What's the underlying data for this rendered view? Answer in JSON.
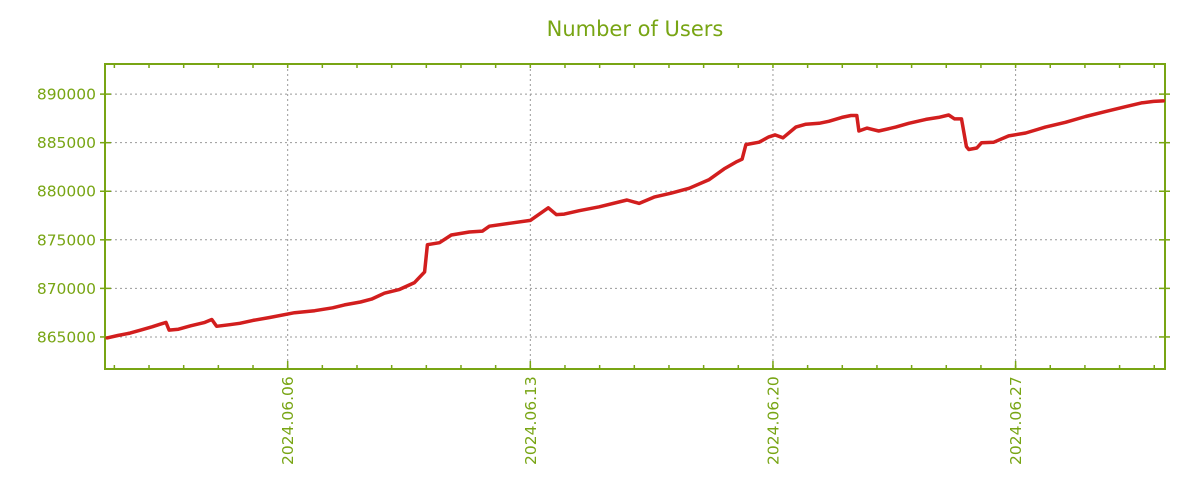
{
  "chart_data": {
    "type": "line",
    "title": "Number of Users",
    "xlabel": "",
    "ylabel": "",
    "legend_position": "none",
    "grid": true,
    "colors": {
      "axis": "#78a514",
      "label_text": "#78a514",
      "grid": "#999999",
      "line": "#d21e1e",
      "background": "#ffffff"
    },
    "x_axis": {
      "unit": "day-of-June-2024 (decimal)",
      "range_days": [
        0.73,
        31.31
      ],
      "major_ticks": [
        {
          "day": 6,
          "label": "2024.06.06"
        },
        {
          "day": 13,
          "label": "2024.06.13"
        },
        {
          "day": 20,
          "label": "2024.06.20"
        },
        {
          "day": 27,
          "label": "2024.06.27"
        }
      ],
      "minor_tick_days": [
        1,
        2,
        3,
        4,
        5,
        6,
        7,
        8,
        9,
        10,
        11,
        12,
        13,
        14,
        15,
        16,
        17,
        18,
        19,
        20,
        21,
        22,
        23,
        24,
        25,
        26,
        27,
        28,
        29,
        30,
        31
      ]
    },
    "y_axis": {
      "range": [
        861700,
        893100
      ],
      "ticks": [
        {
          "value": 865000,
          "label": "865000"
        },
        {
          "value": 870000,
          "label": "870000"
        },
        {
          "value": 875000,
          "label": "875000"
        },
        {
          "value": 880000,
          "label": "880000"
        },
        {
          "value": 885000,
          "label": "885000"
        },
        {
          "value": 890000,
          "label": "890000"
        }
      ]
    },
    "series": [
      {
        "name": "Number of Users",
        "color": "#d21e1e",
        "points": [
          [
            0.79,
            864900
          ],
          [
            1.1,
            865150
          ],
          [
            1.45,
            865400
          ],
          [
            1.8,
            865750
          ],
          [
            2.1,
            866050
          ],
          [
            2.31,
            866300
          ],
          [
            2.49,
            866500
          ],
          [
            2.58,
            865700
          ],
          [
            2.85,
            865800
          ],
          [
            3.2,
            866150
          ],
          [
            3.61,
            866500
          ],
          [
            3.81,
            866800
          ],
          [
            3.95,
            866100
          ],
          [
            4.3,
            866250
          ],
          [
            4.62,
            866400
          ],
          [
            5.0,
            866700
          ],
          [
            5.48,
            867000
          ],
          [
            6.2,
            867500
          ],
          [
            6.78,
            867700
          ],
          [
            7.3,
            868000
          ],
          [
            7.64,
            868300
          ],
          [
            8.1,
            868600
          ],
          [
            8.42,
            868900
          ],
          [
            8.79,
            869500
          ],
          [
            9.23,
            869900
          ],
          [
            9.66,
            870600
          ],
          [
            9.95,
            871700
          ],
          [
            10.03,
            874500
          ],
          [
            10.38,
            874700
          ],
          [
            10.72,
            875500
          ],
          [
            11.24,
            875800
          ],
          [
            11.62,
            875900
          ],
          [
            11.82,
            876400
          ],
          [
            12.4,
            876700
          ],
          [
            13.0,
            877000
          ],
          [
            13.52,
            878300
          ],
          [
            13.75,
            877600
          ],
          [
            13.98,
            877650
          ],
          [
            14.41,
            878000
          ],
          [
            14.99,
            878400
          ],
          [
            15.79,
            879100
          ],
          [
            16.14,
            878750
          ],
          [
            16.57,
            879400
          ],
          [
            17.06,
            879800
          ],
          [
            17.58,
            880300
          ],
          [
            18.16,
            881200
          ],
          [
            18.59,
            882300
          ],
          [
            18.93,
            883000
          ],
          [
            19.11,
            883300
          ],
          [
            19.22,
            884800
          ],
          [
            19.6,
            885050
          ],
          [
            19.88,
            885600
          ],
          [
            20.06,
            885800
          ],
          [
            20.29,
            885500
          ],
          [
            20.66,
            886600
          ],
          [
            20.95,
            886900
          ],
          [
            21.33,
            887000
          ],
          [
            21.61,
            887200
          ],
          [
            21.99,
            887600
          ],
          [
            22.25,
            887800
          ],
          [
            22.42,
            887800
          ],
          [
            22.48,
            886200
          ],
          [
            22.71,
            886500
          ],
          [
            23.05,
            886200
          ],
          [
            23.54,
            886600
          ],
          [
            23.92,
            887000
          ],
          [
            24.41,
            887400
          ],
          [
            24.78,
            887600
          ],
          [
            25.07,
            887850
          ],
          [
            25.24,
            887450
          ],
          [
            25.44,
            887450
          ],
          [
            25.58,
            884600
          ],
          [
            25.65,
            884300
          ],
          [
            25.88,
            884450
          ],
          [
            26.02,
            885000
          ],
          [
            26.37,
            885050
          ],
          [
            26.8,
            885700
          ],
          [
            27.29,
            886000
          ],
          [
            27.86,
            886600
          ],
          [
            28.44,
            887100
          ],
          [
            29.02,
            887700
          ],
          [
            29.59,
            888200
          ],
          [
            30.17,
            888700
          ],
          [
            30.63,
            889100
          ],
          [
            30.98,
            889250
          ],
          [
            31.26,
            889300
          ]
        ]
      }
    ]
  }
}
